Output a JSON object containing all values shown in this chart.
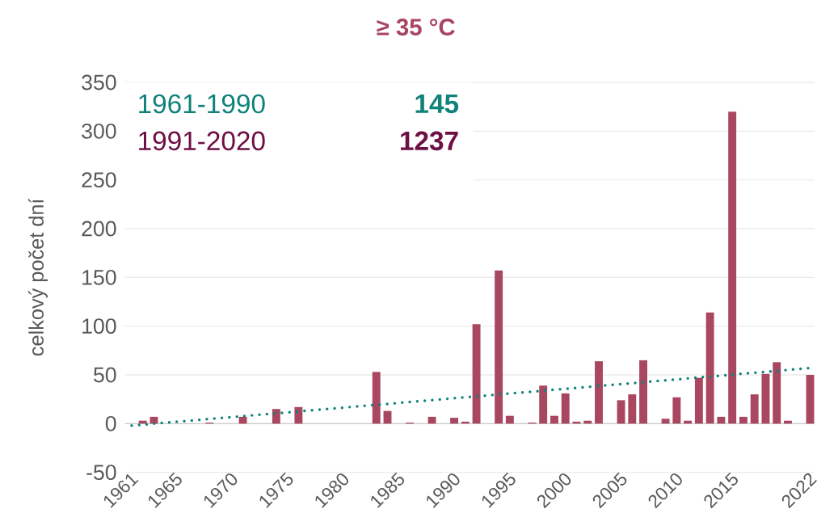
{
  "chart_data": {
    "type": "bar",
    "title": "≥ 35 °C",
    "ylabel": "celkový počet dní",
    "x": [
      1961,
      1962,
      1963,
      1964,
      1965,
      1966,
      1967,
      1968,
      1969,
      1970,
      1971,
      1972,
      1973,
      1974,
      1975,
      1976,
      1977,
      1978,
      1979,
      1980,
      1981,
      1982,
      1983,
      1984,
      1985,
      1986,
      1987,
      1988,
      1989,
      1990,
      1991,
      1992,
      1993,
      1994,
      1995,
      1996,
      1997,
      1998,
      1999,
      2000,
      2001,
      2002,
      2003,
      2004,
      2005,
      2006,
      2007,
      2008,
      2009,
      2010,
      2011,
      2012,
      2013,
      2014,
      2015,
      2016,
      2017,
      2018,
      2019,
      2020,
      2021,
      2022
    ],
    "series": [
      {
        "color": "#a8475f",
        "values": [
          0,
          3,
          7,
          0,
          0,
          0,
          0,
          1,
          0,
          0,
          7,
          0,
          0,
          15,
          0,
          17,
          0,
          0,
          0,
          0,
          0,
          0,
          53,
          13,
          0,
          1,
          0,
          7,
          0,
          6,
          2,
          102,
          0,
          157,
          8,
          0,
          1,
          39,
          8,
          31,
          2,
          3,
          64,
          0,
          24,
          30,
          65,
          0,
          5,
          27,
          3,
          47,
          114,
          7,
          320,
          7,
          30,
          51,
          63,
          3,
          0,
          50
        ]
      },
      {
        "type": "line",
        "color": "#0f827a",
        "line_style": "dotted",
        "x": [
          1961,
          2022
        ],
        "values": [
          -2,
          57
        ]
      }
    ],
    "xlim": [
      1960.4,
      2022.4
    ],
    "xticks": [
      1961,
      1965,
      1970,
      1975,
      1980,
      1985,
      1990,
      1995,
      2000,
      2005,
      2010,
      2015,
      2022
    ],
    "ylim": [
      -50,
      350
    ],
    "yticks": [
      -50,
      0,
      50,
      100,
      150,
      200,
      250,
      300,
      350
    ],
    "grid": "y",
    "annotations": [
      "1961-1990",
      "145",
      "1991-2020",
      "1237"
    ]
  }
}
